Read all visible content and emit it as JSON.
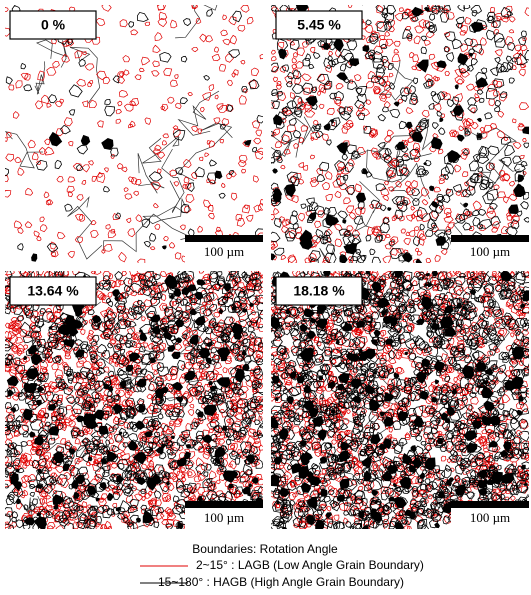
{
  "panels": [
    {
      "label": "0 %",
      "scale_bar": "100 µm"
    },
    {
      "label": "5.45 %",
      "scale_bar": "100 µm"
    },
    {
      "label": "13.64 %",
      "scale_bar": "100 µm"
    },
    {
      "label": "18.18 %",
      "scale_bar": "100 µm"
    }
  ],
  "legend": {
    "title": "Boundaries: Rotation Angle",
    "items": [
      "2~15° : LAGB (Low Angle Grain Boundary)",
      "15~180° : HAGB (High Angle Grain Boundary)"
    ]
  }
}
